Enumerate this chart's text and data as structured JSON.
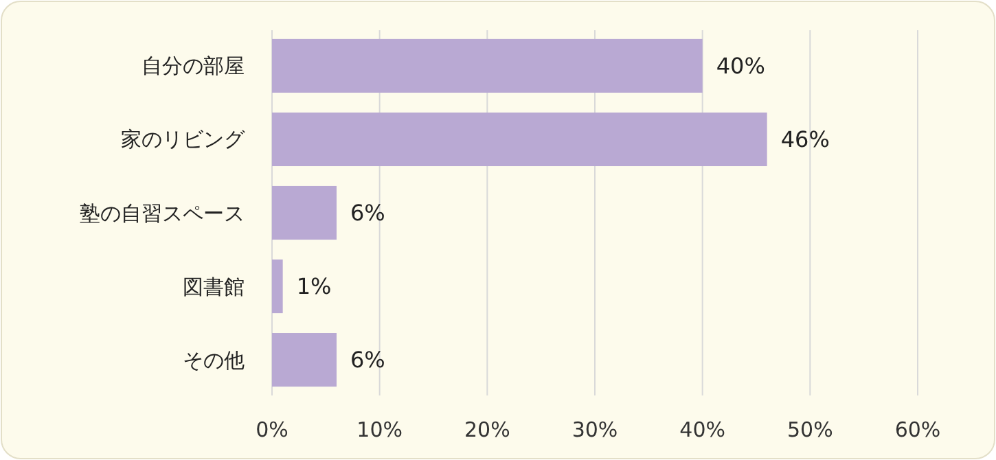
{
  "chart_data": {
    "type": "bar",
    "orientation": "horizontal",
    "categories": [
      "自分の部屋",
      "家のリビング",
      "塾の自習スペース",
      "図書館",
      "その他"
    ],
    "values": [
      40,
      46,
      6,
      1,
      6
    ],
    "value_labels": [
      "40%",
      "46%",
      "6%",
      "1%",
      "6%"
    ],
    "color": "#b9a9d3",
    "xlim": [
      0,
      60
    ],
    "xticks": [
      {
        "value": 0,
        "label": "0%"
      },
      {
        "value": 10,
        "label": "10%"
      },
      {
        "value": 20,
        "label": "20%"
      },
      {
        "value": 30,
        "label": "30%"
      },
      {
        "value": 40,
        "label": "40%"
      },
      {
        "value": 50,
        "label": "50%"
      },
      {
        "value": 60,
        "label": "60%"
      }
    ],
    "grid": "x"
  }
}
